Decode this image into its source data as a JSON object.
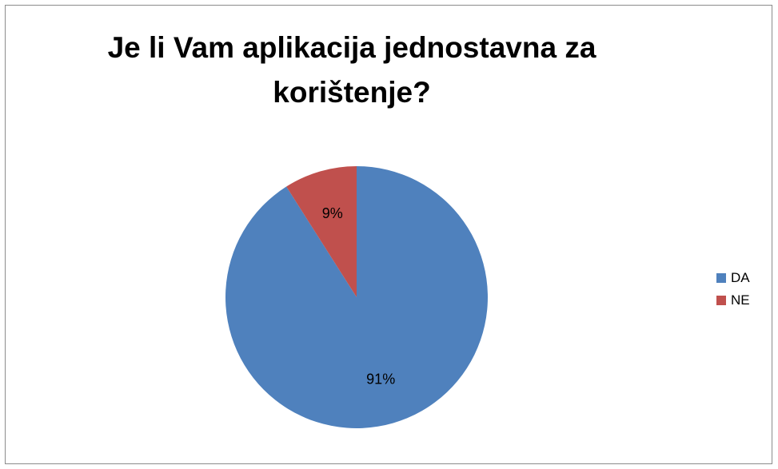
{
  "chart_data": {
    "type": "pie",
    "title_lines": [
      "Je li Vam aplikacija jednostavna za",
      "korištenje?"
    ],
    "slices": [
      {
        "name": "DA",
        "value": 91,
        "label": "91%",
        "color": "#4f81bd"
      },
      {
        "name": "NE",
        "value": 9,
        "label": "9%",
        "color": "#c0504d"
      }
    ],
    "legend_position": "right",
    "start_angle_deg": 0,
    "direction": "clockwise"
  }
}
